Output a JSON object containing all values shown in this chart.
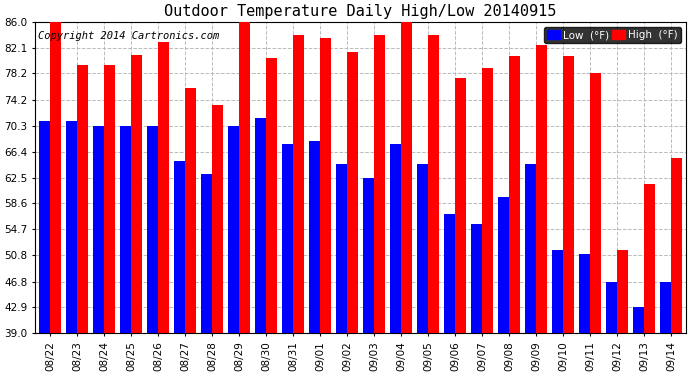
{
  "title": "Outdoor Temperature Daily High/Low 20140915",
  "copyright": "Copyright 2014 Cartronics.com",
  "legend_low": "Low  (°F)",
  "legend_high": "High  (°F)",
  "dates": [
    "08/22",
    "08/23",
    "08/24",
    "08/25",
    "08/26",
    "08/27",
    "08/28",
    "08/29",
    "08/30",
    "08/31",
    "09/01",
    "09/02",
    "09/03",
    "09/04",
    "09/05",
    "09/06",
    "09/07",
    "09/08",
    "09/09",
    "09/10",
    "09/11",
    "09/12",
    "09/13",
    "09/14"
  ],
  "high": [
    86.0,
    79.5,
    79.5,
    81.0,
    83.0,
    76.0,
    73.5,
    86.0,
    80.5,
    84.0,
    83.5,
    81.5,
    84.0,
    86.0,
    84.0,
    77.5,
    79.0,
    80.8,
    82.5,
    80.8,
    78.2,
    51.5,
    61.5,
    65.5
  ],
  "low": [
    71.0,
    71.0,
    70.3,
    70.3,
    70.3,
    65.0,
    63.0,
    70.3,
    71.5,
    67.5,
    68.0,
    64.5,
    62.5,
    67.5,
    64.5,
    57.0,
    55.5,
    59.5,
    64.5,
    51.5,
    51.0,
    46.8,
    43.0,
    46.8
  ],
  "ymin": 39.0,
  "ylim": [
    39.0,
    86.0
  ],
  "yticks": [
    39.0,
    42.9,
    46.8,
    50.8,
    54.7,
    58.6,
    62.5,
    66.4,
    70.3,
    74.2,
    78.2,
    82.1,
    86.0
  ],
  "bar_width": 0.42,
  "high_color": "#ff0000",
  "low_color": "#0000ff",
  "bg_color": "#ffffff",
  "grid_color": "#bbbbbb",
  "title_fontsize": 11,
  "tick_fontsize": 7.5,
  "copyright_fontsize": 7.5
}
